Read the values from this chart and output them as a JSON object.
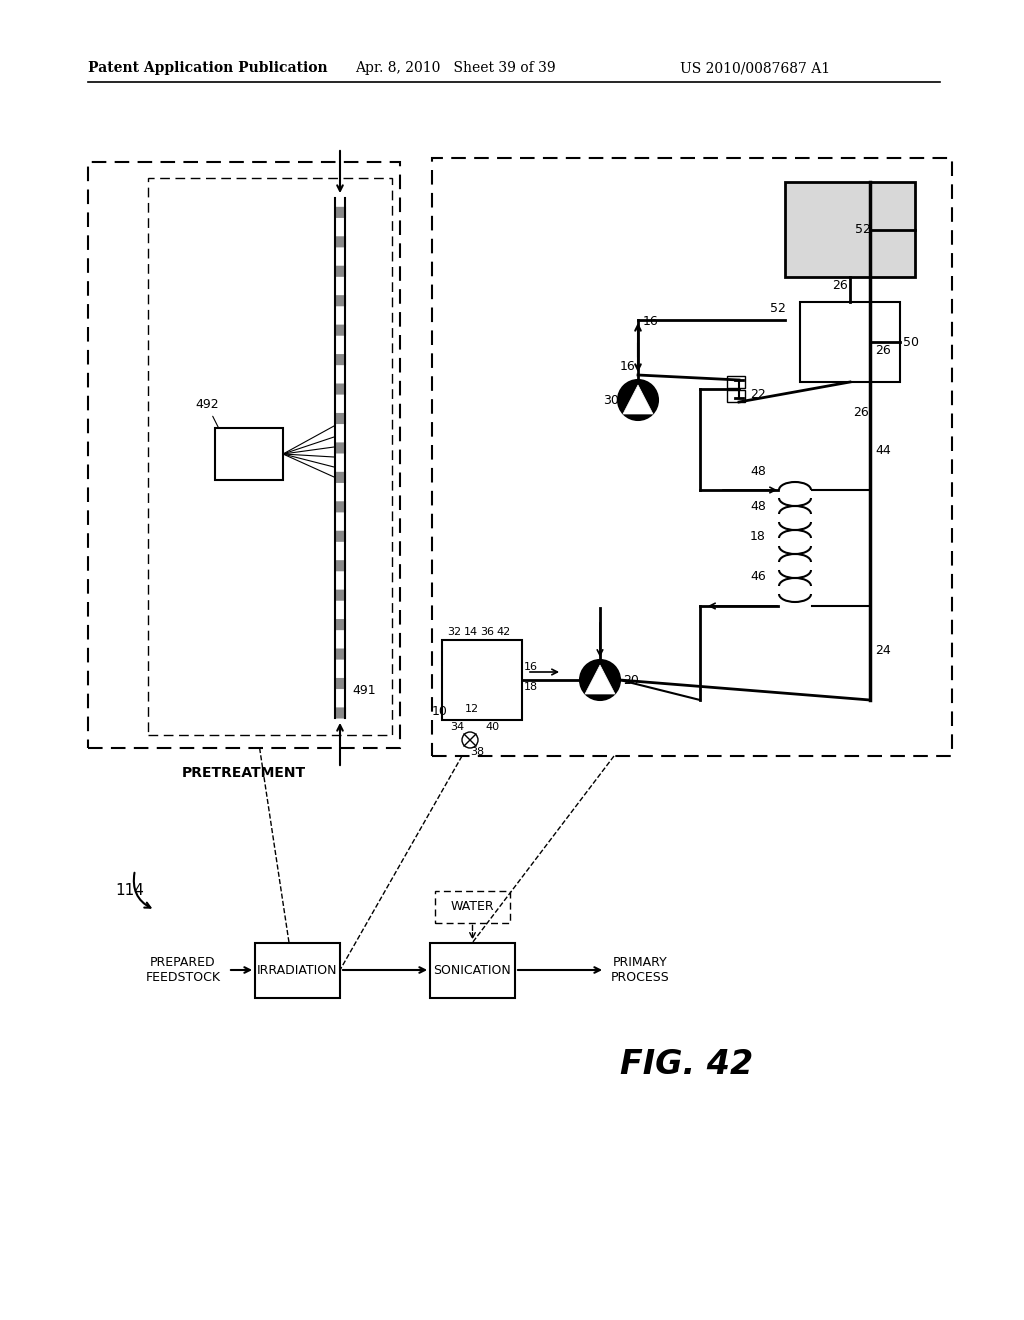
{
  "bg_color": "#ffffff",
  "header_left": "Patent Application Publication",
  "header_center": "Apr. 8, 2010   Sheet 39 of 39",
  "header_right": "US 2010/0087687 A1",
  "fig_label": "FIG. 42",
  "pretreatment_label": "PRETREATMENT",
  "label_114": "114",
  "label_491": "491",
  "label_492": "492",
  "flow_boxes": [
    "IRRADIATION",
    "SONICATION"
  ],
  "flow_label_feedstock": "PREPARED\nFEEDSTOCK",
  "flow_label_primary": "PRIMARY\nPROCESS",
  "water_label": "WATER"
}
